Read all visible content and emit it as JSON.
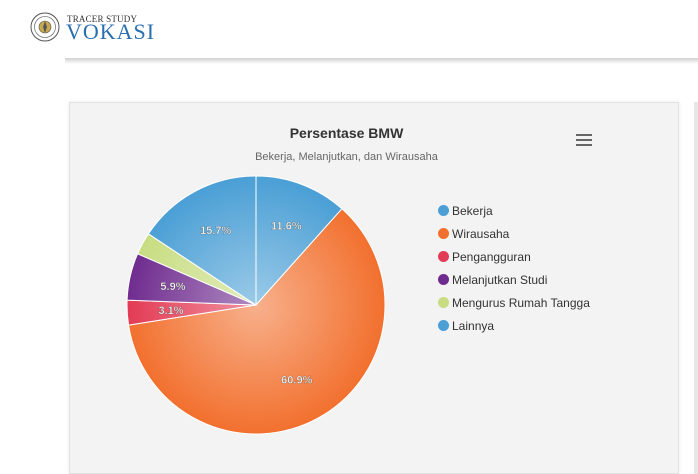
{
  "header": {
    "brand_top": "TRACER STUDY",
    "brand_main": "VOKASI",
    "logo_icon": "university-seal-icon"
  },
  "chart": {
    "menu_icon": "hamburger-menu-icon"
  },
  "chart_data": {
    "type": "pie",
    "title": "Persentase BMW",
    "subtitle": "Bekerja, Melanjutkan, dan Wirausaha",
    "legend_position": "right",
    "slices": [
      {
        "name": "Bekerja",
        "value": 11.6,
        "label": "11.6%",
        "color": "#4a9fd5"
      },
      {
        "name": "Wirausaha",
        "value": 60.9,
        "label": "60.9%",
        "color": "#f2702e"
      },
      {
        "name": "Pengangguran",
        "value": 3.1,
        "label": "3.1%",
        "color": "#e33b55"
      },
      {
        "name": "Melanjutkan Studi",
        "value": 5.9,
        "label": "5.9%",
        "color": "#6f2c8f"
      },
      {
        "name": "Mengurus Rumah Tangga",
        "value": 2.8,
        "label": "",
        "color": "#c8dd82"
      },
      {
        "name": "Lainnya",
        "value": 15.7,
        "label": "15.7%",
        "color": "#4a9fd5"
      }
    ]
  }
}
